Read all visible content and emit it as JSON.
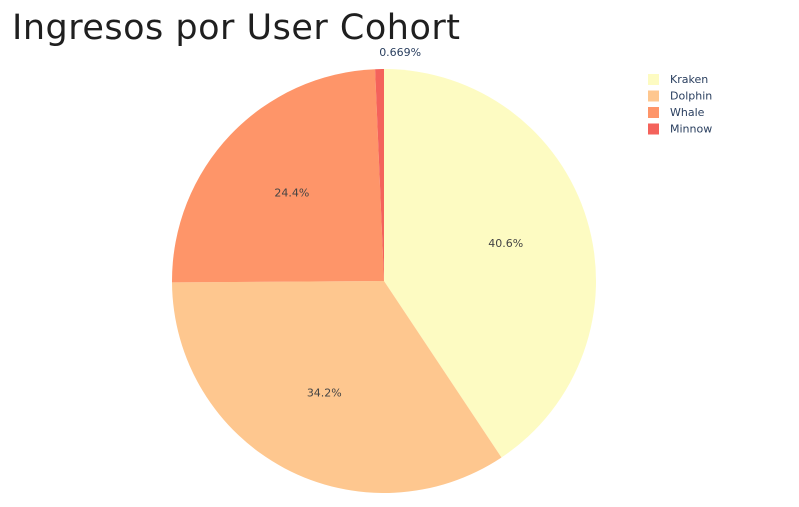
{
  "chart_data": {
    "type": "pie",
    "title": "Ingresos por User Cohort",
    "slices": [
      {
        "name": "Kraken",
        "percent": 40.6,
        "label": "40.6%",
        "color": "#fdfbc2"
      },
      {
        "name": "Dolphin",
        "percent": 34.2,
        "label": "34.2%",
        "color": "#fec78f"
      },
      {
        "name": "Whale",
        "percent": 24.4,
        "label": "24.4%",
        "color": "#fe9569"
      },
      {
        "name": "Minnow",
        "percent": 0.669,
        "label": "0.669%",
        "color": "#f4625b"
      }
    ],
    "direction": "clockwise",
    "legend_placement": "top-right"
  }
}
